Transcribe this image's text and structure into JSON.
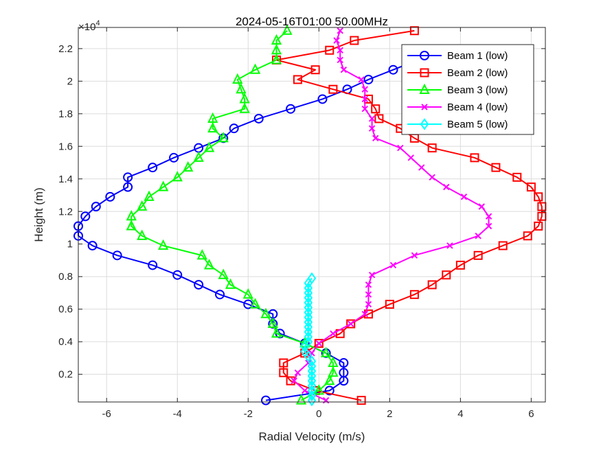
{
  "chart_data": {
    "type": "line",
    "title": "2024-05-16T01:00 50.00MHz",
    "xlabel": "Radial Velocity (m/s)",
    "ylabel": "Height (m)",
    "y_exponent_label": "×10",
    "y_exponent_power": "4",
    "xlim": [
      -6.8,
      6.4
    ],
    "ylim": [
      300,
      23300
    ],
    "xticks": [
      -6,
      -4,
      -2,
      0,
      2,
      4,
      6
    ],
    "xtick_labels": [
      "-6",
      "-4",
      "-2",
      "0",
      "2",
      "4",
      "6"
    ],
    "yticks": [
      2000,
      4000,
      6000,
      8000,
      10000,
      12000,
      14000,
      16000,
      18000,
      20000,
      22000
    ],
    "ytick_labels": [
      "0.2",
      "0.4",
      "0.6",
      "0.8",
      "1",
      "1.2",
      "1.4",
      "1.6",
      "1.8",
      "2",
      "2.2"
    ],
    "grid": true,
    "legend_position": "top-right",
    "series": [
      {
        "name": "Beam 1 (low)",
        "color": "#0000ff",
        "marker": "circle",
        "x": [
          -1.5,
          0.3,
          0.7,
          0.7,
          0.7,
          0.2,
          -0.4,
          -1.1,
          -1.3,
          -1.3,
          -2.0,
          -2.8,
          -3.4,
          -4.0,
          -4.7,
          -5.7,
          -6.4,
          -6.8,
          -6.8,
          -6.6,
          -6.3,
          -5.9,
          -5.4,
          -5.4,
          -4.7,
          -4.1,
          -3.4,
          -2.7,
          -2.4,
          -1.7,
          -0.8,
          0.1,
          0.8,
          1.4,
          2.1,
          2.8
        ],
        "y": [
          400,
          1000,
          1600,
          2100,
          2700,
          3300,
          3900,
          4500,
          5100,
          5700,
          6300,
          6900,
          7500,
          8100,
          8700,
          9300,
          9900,
          10500,
          11100,
          11700,
          12300,
          12900,
          13500,
          14100,
          14700,
          15300,
          15900,
          16500,
          17100,
          17700,
          18300,
          18900,
          19500,
          20100,
          20700,
          21300
        ]
      },
      {
        "name": "Beam 2 (low)",
        "color": "#ff0000",
        "marker": "square",
        "x": [
          1.2,
          -0.1,
          -0.8,
          -1.0,
          -1.0,
          -0.4,
          0.0,
          0.6,
          0.9,
          1.4,
          2.0,
          2.7,
          3.2,
          3.6,
          4.0,
          4.5,
          5.2,
          5.9,
          6.2,
          6.3,
          6.3,
          6.2,
          6.0,
          5.6,
          5.0,
          4.4,
          3.2,
          2.7,
          2.3,
          1.7,
          1.6,
          1.4,
          0.4,
          -0.6,
          -0.1,
          -1.2,
          0.3,
          1.0,
          2.7
        ],
        "y": [
          400,
          1000,
          1600,
          2100,
          2700,
          3300,
          3900,
          4500,
          5100,
          5700,
          6300,
          6900,
          7500,
          8100,
          8700,
          9300,
          9900,
          10500,
          11100,
          11700,
          12300,
          12900,
          13500,
          14100,
          14700,
          15300,
          15900,
          16500,
          17100,
          17700,
          18300,
          18900,
          19500,
          20100,
          20700,
          21300,
          21900,
          22500,
          23100
        ]
      },
      {
        "name": "Beam 3 (low)",
        "color": "#00ff00",
        "marker": "triangle",
        "x": [
          -0.5,
          0.0,
          0.3,
          0.4,
          0.4,
          0.2,
          -0.4,
          -1.2,
          -1.3,
          -1.5,
          -1.8,
          -2.0,
          -2.5,
          -2.7,
          -3.1,
          -3.3,
          -4.4,
          -5.0,
          -5.3,
          -5.3,
          -5.0,
          -4.8,
          -4.4,
          -4.0,
          -3.7,
          -3.4,
          -3.1,
          -2.7,
          -3.0,
          -3.0,
          -2.1,
          -2.1,
          -2.2,
          -2.3,
          -1.8,
          -1.2,
          -1.2,
          -1.2,
          -0.9
        ],
        "y": [
          400,
          1000,
          1600,
          2100,
          2700,
          3300,
          3900,
          4500,
          5100,
          5700,
          6300,
          6900,
          7500,
          8100,
          8700,
          9300,
          9900,
          10500,
          11100,
          11700,
          12300,
          12900,
          13500,
          14100,
          14700,
          15300,
          15900,
          16500,
          17100,
          17700,
          18300,
          18900,
          19500,
          20100,
          20700,
          21300,
          21900,
          22500,
          23100
        ]
      },
      {
        "name": "Beam 4 (low)",
        "color": "#ff00ff",
        "marker": "x",
        "x": [
          0.2,
          -0.4,
          -0.7,
          -0.6,
          -0.3,
          -0.2,
          0.0,
          0.4,
          0.9,
          1.3,
          1.4,
          1.4,
          1.4,
          1.5,
          2.1,
          2.7,
          3.7,
          4.5,
          4.8,
          4.8,
          4.6,
          4.1,
          3.6,
          3.2,
          2.9,
          2.6,
          2.3,
          1.6,
          1.5,
          1.5,
          1.3,
          1.3,
          1.3,
          1.2,
          0.7,
          0.6,
          0.6,
          0.5,
          0.6
        ],
        "y": [
          400,
          1000,
          1600,
          2100,
          2700,
          3300,
          3900,
          4500,
          5100,
          5700,
          6300,
          6900,
          7500,
          8100,
          8700,
          9300,
          9900,
          10500,
          11100,
          11700,
          12300,
          12900,
          13500,
          14100,
          14700,
          15300,
          15900,
          16500,
          17100,
          17700,
          18300,
          18900,
          19500,
          20100,
          20700,
          21300,
          21900,
          22500,
          23100
        ]
      },
      {
        "name": "Beam 5 (low)",
        "color": "#00ffff",
        "marker": "diamond",
        "x": [
          -0.2,
          -0.2,
          -0.2,
          -0.2,
          -0.2,
          -0.2,
          -0.2,
          -0.2,
          -0.2,
          -0.3,
          -0.4,
          -0.4,
          -0.3,
          -0.3,
          -0.3,
          -0.3,
          -0.3,
          -0.3,
          -0.3,
          -0.3,
          -0.3,
          -0.3,
          -0.3,
          -0.3,
          -0.3,
          -0.2
        ],
        "y": [
          400,
          700,
          1000,
          1300,
          1600,
          1900,
          2200,
          2500,
          2800,
          3100,
          3400,
          3700,
          4000,
          4300,
          4600,
          4900,
          5200,
          5500,
          5800,
          6100,
          6400,
          6700,
          7000,
          7300,
          7600,
          7900
        ]
      }
    ]
  }
}
